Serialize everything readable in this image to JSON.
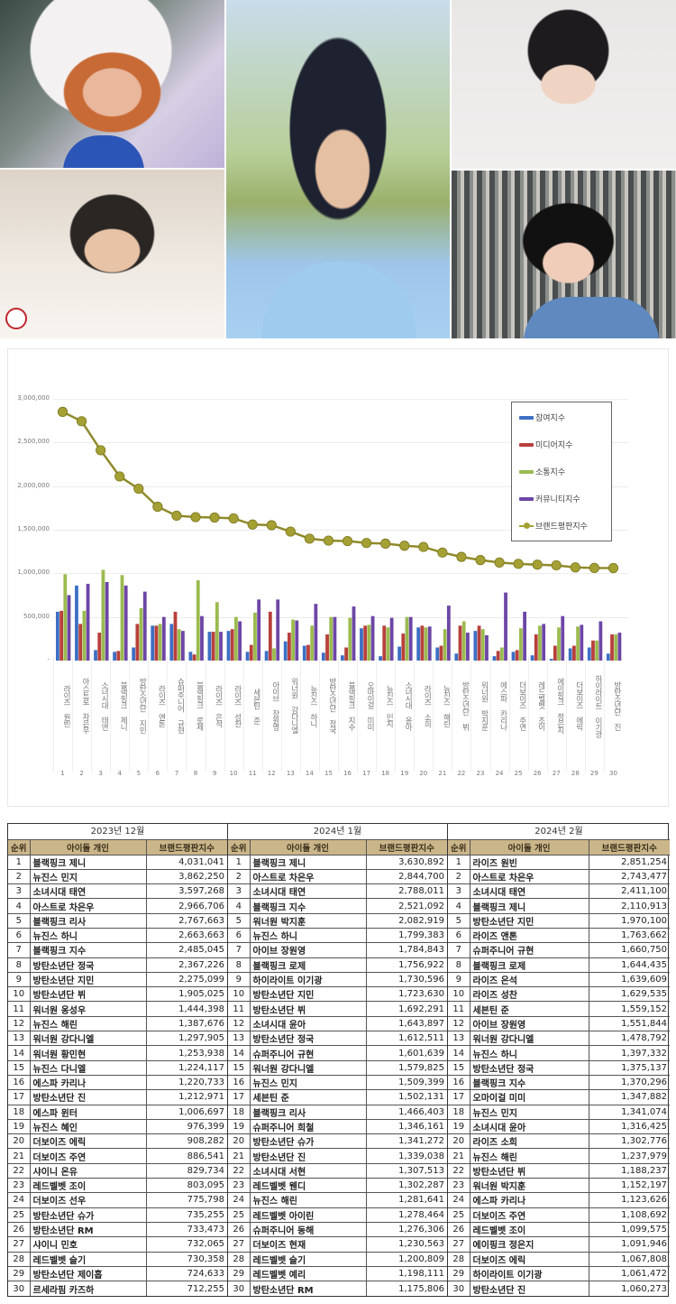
{
  "collage": {
    "photos": [
      {
        "id": "top-left",
        "alt": "portrait-orange-hair-fur-hood"
      },
      {
        "id": "bottom-left",
        "alt": "portrait-dark-hair-white-shirt"
      },
      {
        "id": "center",
        "alt": "portrait-long-dark-hair-blue-tee"
      },
      {
        "id": "top-right",
        "alt": "portrait-dark-hair-white-shirt-hand"
      },
      {
        "id": "bottom-right",
        "alt": "portrait-dark-hair-blue-jacket"
      }
    ]
  },
  "chart_data": {
    "type": "bar",
    "title": "",
    "xlabel": "",
    "ylabel": "",
    "ylim": [
      0,
      3000000
    ],
    "yticks": [
      "-",
      "500,000",
      "1,000,000",
      "1,500,000",
      "2,000,000",
      "2,500,000",
      "3,000,000"
    ],
    "grid": true,
    "legend_position": "upper-right",
    "categories": [
      "라이즈 원빈",
      "아스트로 차은우",
      "소녀시대 태연",
      "블랙핑크 제니",
      "방탄소년단 지민",
      "라이즈 앤톤",
      "슈퍼주니어 규현",
      "블랙핑크 로제",
      "라이즈 은석",
      "라이즈 성찬",
      "세븐틴 준",
      "아이브 장원영",
      "워너원 강다니엘",
      "뉴진스 하니",
      "방탄소년단 정국",
      "블랙핑크 지수",
      "오마이걸 미미",
      "뉴진스 민지",
      "소녀시대 윤아",
      "라이즈 소희",
      "뉴진스 해린",
      "방탄소년단 뷔",
      "워너원 박지훈",
      "에스파 카리나",
      "더보이즈 주연",
      "레드벨벳 조이",
      "에이핑크 정은지",
      "더보이즈 에릭",
      "하이라이트 이기광",
      "방탄소년단 진"
    ],
    "x_numbers": [
      "1",
      "2",
      "3",
      "4",
      "5",
      "6",
      "7",
      "8",
      "9",
      "10",
      "11",
      "12",
      "13",
      "14",
      "15",
      "16",
      "17",
      "18",
      "19",
      "20",
      "21",
      "22",
      "23",
      "24",
      "25",
      "26",
      "27",
      "28",
      "29",
      "30"
    ],
    "series": [
      {
        "name": "참여지수",
        "color": "#3d6fc4",
        "kind": "bar",
        "values": [
          560000,
          860000,
          120000,
          100000,
          150000,
          400000,
          420000,
          100000,
          330000,
          340000,
          100000,
          110000,
          220000,
          170000,
          90000,
          60000,
          370000,
          50000,
          160000,
          380000,
          150000,
          80000,
          340000,
          50000,
          100000,
          60000,
          20000,
          140000,
          150000,
          80000
        ]
      },
      {
        "name": "미디어지수",
        "color": "#b8403c",
        "kind": "bar",
        "values": [
          570000,
          420000,
          320000,
          110000,
          420000,
          400000,
          560000,
          70000,
          330000,
          360000,
          180000,
          560000,
          320000,
          180000,
          300000,
          150000,
          400000,
          400000,
          310000,
          400000,
          170000,
          400000,
          400000,
          110000,
          120000,
          300000,
          170000,
          170000,
          230000,
          300000
        ]
      },
      {
        "name": "소통지수",
        "color": "#9bbb4f",
        "kind": "bar",
        "values": [
          990000,
          570000,
          1040000,
          980000,
          600000,
          420000,
          360000,
          920000,
          670000,
          500000,
          550000,
          140000,
          470000,
          400000,
          500000,
          490000,
          410000,
          380000,
          500000,
          380000,
          360000,
          450000,
          360000,
          150000,
          370000,
          400000,
          380000,
          390000,
          230000,
          300000
        ]
      },
      {
        "name": "커뮤니티지수",
        "color": "#6d46a6",
        "kind": "bar",
        "values": [
          750000,
          880000,
          900000,
          860000,
          790000,
          500000,
          340000,
          510000,
          330000,
          450000,
          700000,
          700000,
          460000,
          650000,
          500000,
          620000,
          510000,
          490000,
          500000,
          390000,
          630000,
          320000,
          290000,
          780000,
          560000,
          420000,
          510000,
          410000,
          450000,
          320000
        ]
      },
      {
        "name": "브랜드평판지수",
        "color": "#a4a033",
        "kind": "line",
        "values": [
          2851254,
          2743477,
          2411100,
          2110913,
          1970100,
          1763662,
          1660750,
          1644435,
          1639609,
          1629535,
          1559152,
          1551844,
          1478792,
          1397332,
          1375137,
          1370296,
          1347882,
          1341074,
          1316425,
          1302776,
          1237979,
          1188237,
          1152197,
          1123626,
          1108692,
          1099575,
          1091946,
          1067808,
          1061472,
          1060273
        ]
      }
    ]
  },
  "tables": [
    {
      "month": "2023년 12월",
      "headers": [
        "순위",
        "아이돌 개인",
        "브랜드평판지수"
      ],
      "rows": [
        [
          "1",
          "블랙핑크 제니",
          "4,031,041"
        ],
        [
          "2",
          "뉴진스 민지",
          "3,862,250"
        ],
        [
          "3",
          "소녀시대 태연",
          "3,597,268"
        ],
        [
          "4",
          "아스트로 차은우",
          "2,966,706"
        ],
        [
          "5",
          "블랙핑크 리사",
          "2,767,663"
        ],
        [
          "6",
          "뉴진스 하니",
          "2,663,663"
        ],
        [
          "7",
          "블랙핑크 지수",
          "2,485,045"
        ],
        [
          "8",
          "방탄소년단 정국",
          "2,367,226"
        ],
        [
          "9",
          "방탄소년단 지민",
          "2,275,099"
        ],
        [
          "10",
          "방탄소년단 뷔",
          "1,905,025"
        ],
        [
          "11",
          "워너원 옹성우",
          "1,444,398"
        ],
        [
          "12",
          "뉴진스 해린",
          "1,387,676"
        ],
        [
          "13",
          "워너원 강다니엘",
          "1,297,905"
        ],
        [
          "14",
          "워너원 황민현",
          "1,253,938"
        ],
        [
          "15",
          "뉴진스 다니엘",
          "1,224,117"
        ],
        [
          "16",
          "에스파 카리나",
          "1,220,733"
        ],
        [
          "17",
          "방탄소년단 진",
          "1,212,971"
        ],
        [
          "18",
          "에스파 윈터",
          "1,006,697"
        ],
        [
          "19",
          "뉴진스 혜인",
          "976,399"
        ],
        [
          "20",
          "더보이즈 에릭",
          "908,282"
        ],
        [
          "21",
          "더보이즈 주연",
          "886,541"
        ],
        [
          "22",
          "샤이니 온유",
          "829,734"
        ],
        [
          "23",
          "레드벨벳 조이",
          "803,095"
        ],
        [
          "24",
          "더보이즈 선우",
          "775,798"
        ],
        [
          "25",
          "방탄소년단 슈가",
          "735,255"
        ],
        [
          "26",
          "방탄소년단 RM",
          "733,473"
        ],
        [
          "27",
          "샤이니 민호",
          "732,065"
        ],
        [
          "28",
          "레드벨벳 슬기",
          "730,358"
        ],
        [
          "29",
          "방탄소년단 제이홉",
          "724,633"
        ],
        [
          "30",
          "르세라핌 카즈하",
          "712,255"
        ]
      ]
    },
    {
      "month": "2024년 1월",
      "headers": [
        "순위",
        "아이돌 개인",
        "브랜드평판지수"
      ],
      "rows": [
        [
          "1",
          "블랙핑크 제니",
          "3,630,892"
        ],
        [
          "2",
          "아스트로 차은우",
          "2,844,700"
        ],
        [
          "3",
          "소녀시대 태연",
          "2,788,011"
        ],
        [
          "4",
          "블랙핑크 지수",
          "2,521,092"
        ],
        [
          "5",
          "워너원 박지훈",
          "2,082,919"
        ],
        [
          "6",
          "뉴진스 하니",
          "1,799,383"
        ],
        [
          "7",
          "아이브 장원영",
          "1,784,843"
        ],
        [
          "8",
          "블랙핑크 로제",
          "1,756,922"
        ],
        [
          "9",
          "하이라이트 이기광",
          "1,730,596"
        ],
        [
          "10",
          "방탄소년단 지민",
          "1,723,630"
        ],
        [
          "11",
          "방탄소년단 뷔",
          "1,692,291"
        ],
        [
          "12",
          "소녀시대 윤아",
          "1,643,897"
        ],
        [
          "13",
          "방탄소년단 정국",
          "1,612,511"
        ],
        [
          "14",
          "슈퍼주니어 규현",
          "1,601,639"
        ],
        [
          "15",
          "워너원 강다니엘",
          "1,579,825"
        ],
        [
          "16",
          "뉴진스 민지",
          "1,509,399"
        ],
        [
          "17",
          "세븐틴 준",
          "1,502,131"
        ],
        [
          "18",
          "블랙핑크 리사",
          "1,466,403"
        ],
        [
          "19",
          "슈퍼주니어 희철",
          "1,346,161"
        ],
        [
          "20",
          "방탄소년단 슈가",
          "1,341,272"
        ],
        [
          "21",
          "방탄소년단 진",
          "1,339,038"
        ],
        [
          "22",
          "소녀시대 서현",
          "1,307,513"
        ],
        [
          "23",
          "레드벨벳 웬디",
          "1,302,287"
        ],
        [
          "24",
          "뉴진스 해린",
          "1,281,641"
        ],
        [
          "25",
          "레드벨벳 아이린",
          "1,278,464"
        ],
        [
          "26",
          "슈퍼주니어 동해",
          "1,276,306"
        ],
        [
          "27",
          "더보이즈 현재",
          "1,230,563"
        ],
        [
          "28",
          "레드벨벳 슬기",
          "1,200,809"
        ],
        [
          "29",
          "레드벨벳 예리",
          "1,198,111"
        ],
        [
          "30",
          "방탄소년단 RM",
          "1,175,806"
        ]
      ]
    },
    {
      "month": "2024년 2월",
      "headers": [
        "순위",
        "아이돌 개인",
        "브랜드평판지수"
      ],
      "rows": [
        [
          "1",
          "라이즈 원빈",
          "2,851,254"
        ],
        [
          "2",
          "아스트로 차은우",
          "2,743,477"
        ],
        [
          "3",
          "소녀시대 태연",
          "2,411,100"
        ],
        [
          "4",
          "블랙핑크 제니",
          "2,110,913"
        ],
        [
          "5",
          "방탄소년단 지민",
          "1,970,100"
        ],
        [
          "6",
          "라이즈 앤톤",
          "1,763,662"
        ],
        [
          "7",
          "슈퍼주니어 규현",
          "1,660,750"
        ],
        [
          "8",
          "블랙핑크 로제",
          "1,644,435"
        ],
        [
          "9",
          "라이즈 은석",
          "1,639,609"
        ],
        [
          "10",
          "라이즈 성찬",
          "1,629,535"
        ],
        [
          "11",
          "세븐틴 준",
          "1,559,152"
        ],
        [
          "12",
          "아이브 장원영",
          "1,551,844"
        ],
        [
          "13",
          "워너원 강다니엘",
          "1,478,792"
        ],
        [
          "14",
          "뉴진스 하니",
          "1,397,332"
        ],
        [
          "15",
          "방탄소년단 정국",
          "1,375,137"
        ],
        [
          "16",
          "블랙핑크 지수",
          "1,370,296"
        ],
        [
          "17",
          "오마이걸 미미",
          "1,347,882"
        ],
        [
          "18",
          "뉴진스 민지",
          "1,341,074"
        ],
        [
          "19",
          "소녀시대 윤아",
          "1,316,425"
        ],
        [
          "20",
          "라이즈 소희",
          "1,302,776"
        ],
        [
          "21",
          "뉴진스 해린",
          "1,237,979"
        ],
        [
          "22",
          "방탄소년단 뷔",
          "1,188,237"
        ],
        [
          "23",
          "워너원 박지훈",
          "1,152,197"
        ],
        [
          "24",
          "에스파 카리나",
          "1,123,626"
        ],
        [
          "25",
          "더보이즈 주연",
          "1,108,692"
        ],
        [
          "26",
          "레드벨벳 조이",
          "1,099,575"
        ],
        [
          "27",
          "에이핑크 정은지",
          "1,091,946"
        ],
        [
          "28",
          "더보이즈 에릭",
          "1,067,808"
        ],
        [
          "29",
          "하이라이트 이기광",
          "1,061,472"
        ],
        [
          "30",
          "방탄소년단 진",
          "1,060,273"
        ]
      ]
    }
  ]
}
